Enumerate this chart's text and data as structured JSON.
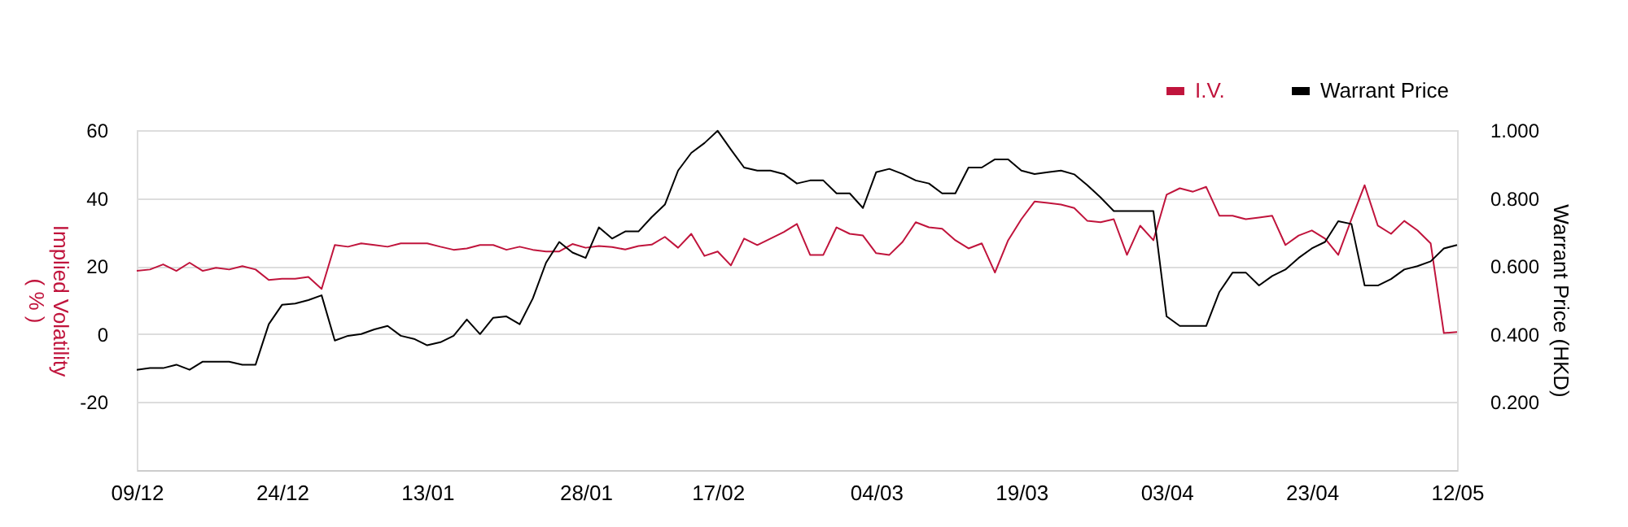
{
  "chart_data": {
    "type": "line",
    "ylabel": "Implied Volatility\n( % )",
    "y2label": "Warrant Price (HKD)",
    "categories": [
      "09/12",
      null,
      null,
      null,
      null,
      null,
      null,
      null,
      null,
      null,
      null,
      "24/12",
      null,
      null,
      null,
      null,
      null,
      null,
      null,
      null,
      null,
      null,
      "13/01",
      null,
      null,
      null,
      null,
      null,
      null,
      null,
      null,
      null,
      null,
      null,
      "28/01",
      null,
      null,
      null,
      null,
      null,
      null,
      null,
      null,
      null,
      "17/02",
      null,
      null,
      null,
      null,
      null,
      null,
      null,
      null,
      null,
      null,
      null,
      "04/03",
      null,
      null,
      null,
      null,
      null,
      null,
      null,
      null,
      null,
      null,
      "19/03",
      null,
      null,
      null,
      null,
      null,
      null,
      null,
      null,
      null,
      null,
      "03/04",
      null,
      null,
      null,
      null,
      null,
      null,
      null,
      null,
      null,
      null,
      "23/04",
      null,
      null,
      null,
      null,
      null,
      null,
      null,
      null,
      null,
      null,
      "12/05"
    ],
    "series": [
      {
        "name": "I.V.",
        "color": "#c0143c",
        "values": [
          18.6,
          19.0,
          20.5,
          18.6,
          21.0,
          18.6,
          19.5,
          19.0,
          20.0,
          19.0,
          15.9,
          16.3,
          16.3,
          16.8,
          13.3,
          26.2,
          25.7,
          26.7,
          26.2,
          25.7,
          26.7,
          26.7,
          26.7,
          25.7,
          24.8,
          25.2,
          26.2,
          26.2,
          24.8,
          25.7,
          24.8,
          24.3,
          24.3,
          26.5,
          25.4,
          25.9,
          25.6,
          24.9,
          25.9,
          26.3,
          28.6,
          25.4,
          29.5,
          23.0,
          24.3,
          20.2,
          28.1,
          26.2,
          28.1,
          30.0,
          32.4,
          23.3,
          23.3,
          31.4,
          29.5,
          29.0,
          23.8,
          23.3,
          27.1,
          32.9,
          31.4,
          31.0,
          27.6,
          25.2,
          26.7,
          18.1,
          27.6,
          33.8,
          39.0,
          38.6,
          38.1,
          37.1,
          33.3,
          32.9,
          33.8,
          23.3,
          31.9,
          27.6,
          41.0,
          42.9,
          41.9,
          43.3,
          34.8,
          34.8,
          33.8,
          34.3,
          34.8,
          26.2,
          29.0,
          30.5,
          28.1,
          23.3,
          33.8,
          43.8,
          31.9,
          29.5,
          33.3,
          30.5,
          26.7,
          0.3,
          0.6
        ]
      },
      {
        "name": "Warrant Price",
        "color": "#000000",
        "axis": "y2",
        "values": [
          0.295,
          0.3,
          0.3,
          0.31,
          0.295,
          0.319,
          0.319,
          0.319,
          0.31,
          0.31,
          0.429,
          0.486,
          0.49,
          0.5,
          0.514,
          0.381,
          0.395,
          0.4,
          0.414,
          0.424,
          0.395,
          0.386,
          0.367,
          0.376,
          0.395,
          0.443,
          0.4,
          0.448,
          0.452,
          0.429,
          0.505,
          0.61,
          0.671,
          0.64,
          0.624,
          0.714,
          0.681,
          0.702,
          0.702,
          0.744,
          0.781,
          0.881,
          0.933,
          0.962,
          0.998,
          0.943,
          0.89,
          0.881,
          0.881,
          0.871,
          0.843,
          0.852,
          0.852,
          0.814,
          0.814,
          0.771,
          0.876,
          0.886,
          0.871,
          0.852,
          0.843,
          0.814,
          0.814,
          0.89,
          0.89,
          0.914,
          0.914,
          0.881,
          0.871,
          0.876,
          0.881,
          0.87,
          0.838,
          0.802,
          0.762,
          0.762,
          0.762,
          0.762,
          0.452,
          0.424,
          0.424,
          0.424,
          0.524,
          0.581,
          0.581,
          0.543,
          0.571,
          0.59,
          0.624,
          0.652,
          0.671,
          0.732,
          0.724,
          0.543,
          0.543,
          0.562,
          0.59,
          0.6,
          0.614,
          0.652,
          0.662
        ]
      }
    ],
    "ylim": [
      -40,
      60
    ],
    "yticks": [
      -20,
      0,
      20,
      40,
      60
    ],
    "y2lim": [
      0,
      1.0
    ],
    "y2ticks": [
      {
        "value": 0.2,
        "label": "0.200"
      },
      {
        "value": 0.4,
        "label": "0.400"
      },
      {
        "value": 0.6,
        "label": "0.600"
      },
      {
        "value": 0.8,
        "label": "0.800"
      },
      {
        "value": 1.0,
        "label": "1.000"
      }
    ],
    "grid": "y",
    "legend": "top right",
    "marker": "none",
    "line_style": "solid"
  }
}
